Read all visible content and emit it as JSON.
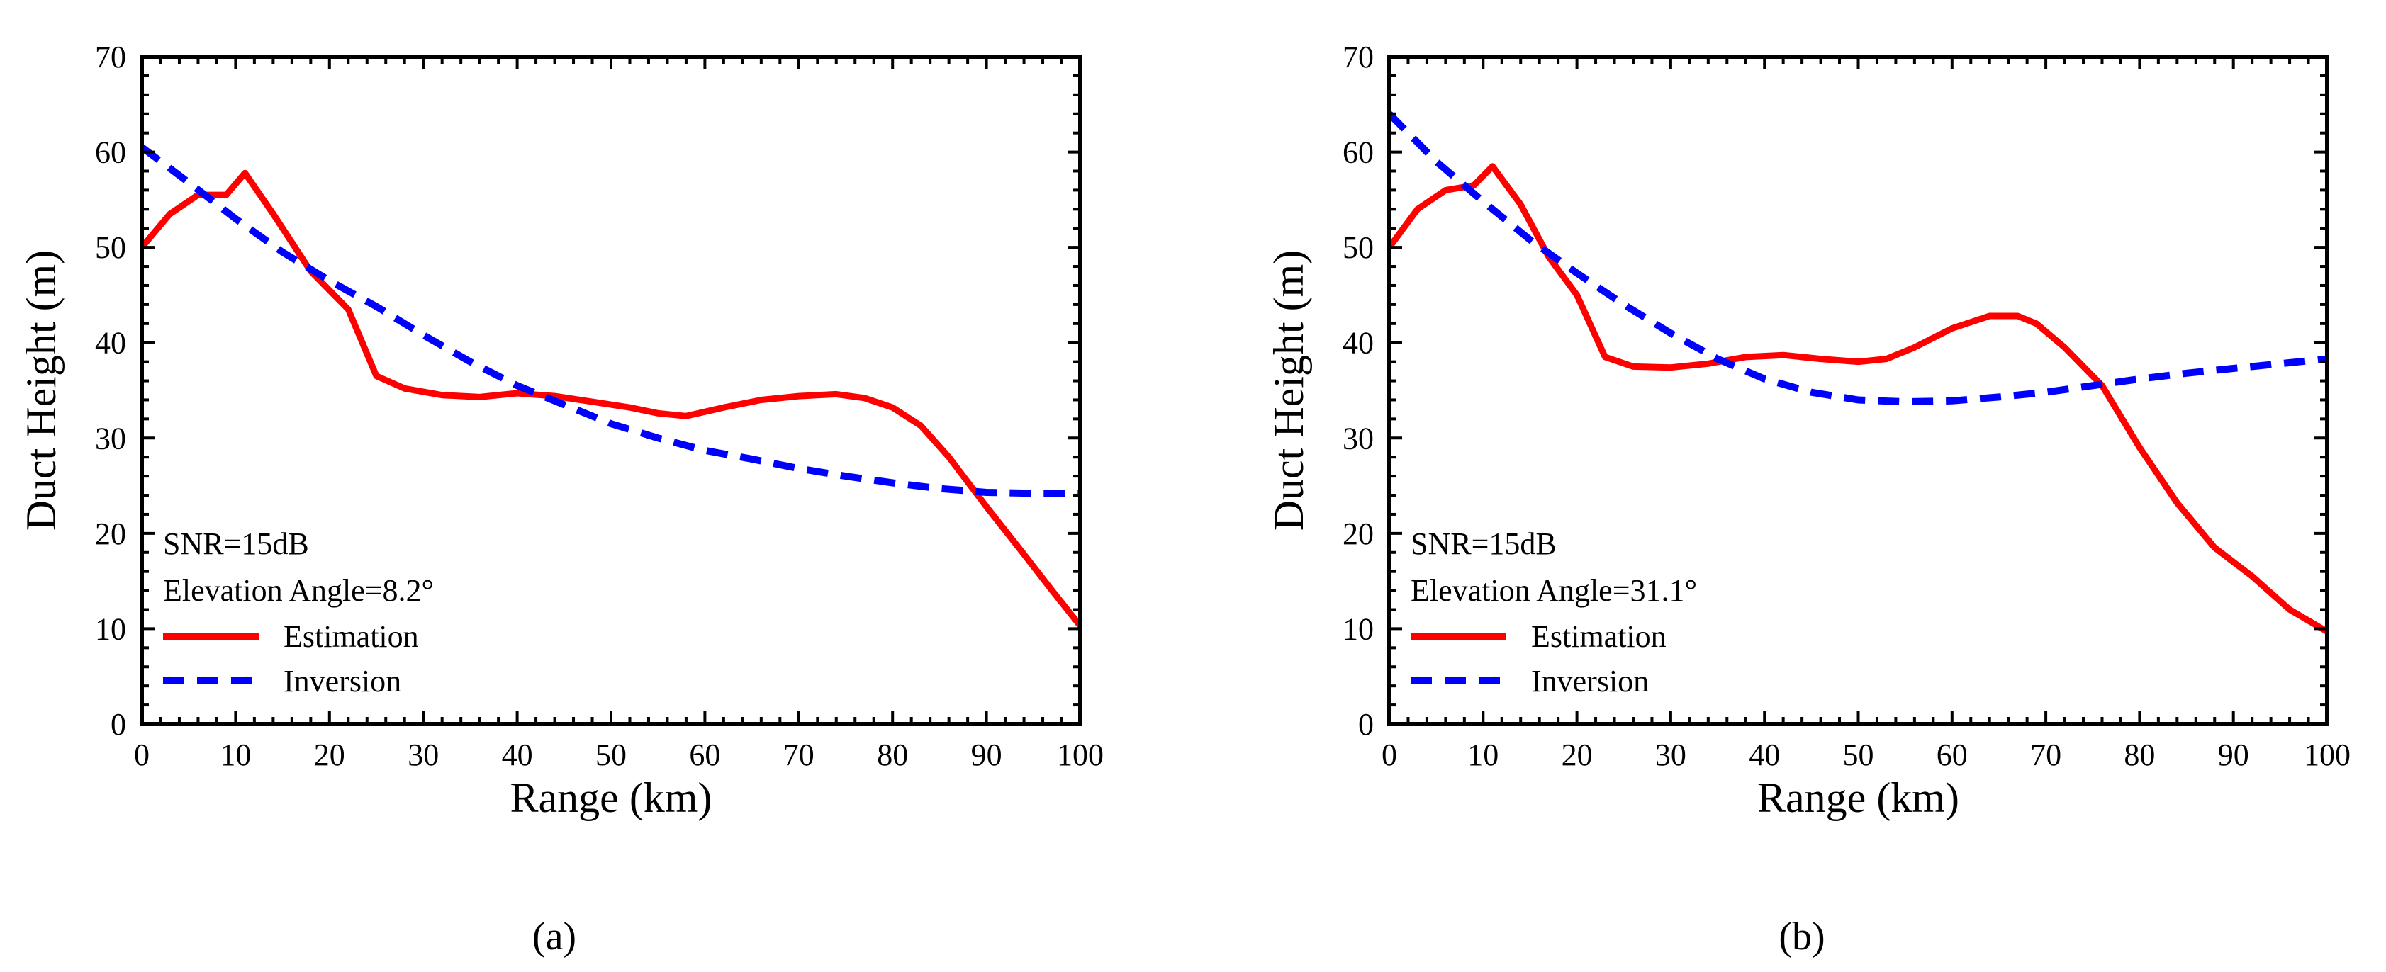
{
  "chart_data": [
    {
      "type": "line",
      "panel_label": "(a)",
      "xlabel": "Range (km)",
      "ylabel": "Duct Height (m)",
      "xlim": [
        0,
        100
      ],
      "ylim": [
        0,
        70
      ],
      "x_ticks": [
        0,
        10,
        20,
        30,
        40,
        50,
        60,
        70,
        80,
        90,
        100
      ],
      "y_ticks": [
        0,
        10,
        20,
        30,
        40,
        50,
        60,
        70
      ],
      "grid": false,
      "legend_position": "bottom-left",
      "annotations": [
        "SNR=15dB",
        "Elevation Angle=8.2°"
      ],
      "series": [
        {
          "name": "Estimation",
          "color": "#ff0000",
          "style": "solid",
          "x": [
            0,
            3,
            6,
            9,
            11,
            14,
            18,
            22,
            25,
            28,
            32,
            36,
            40,
            44,
            48,
            52,
            55,
            58,
            62,
            66,
            70,
            74,
            77,
            80,
            83,
            86,
            90,
            94,
            97,
            100
          ],
          "y": [
            50,
            53.5,
            55.5,
            55.5,
            57.8,
            53.5,
            47.5,
            43.5,
            36.5,
            35.2,
            34.5,
            34.3,
            34.7,
            34.4,
            33.8,
            33.2,
            32.6,
            32.3,
            33.2,
            34.0,
            34.4,
            34.6,
            34.2,
            33.2,
            31.3,
            28.0,
            22.8,
            17.8,
            14.0,
            10.3
          ]
        },
        {
          "name": "Inversion",
          "color": "#0000ff",
          "style": "dashed",
          "x": [
            0,
            5,
            10,
            15,
            20,
            25,
            30,
            35,
            40,
            45,
            50,
            55,
            60,
            65,
            70,
            75,
            80,
            85,
            90,
            95,
            100
          ],
          "y": [
            60.5,
            56.8,
            53.0,
            49.5,
            46.5,
            43.8,
            40.8,
            38.0,
            35.5,
            33.5,
            31.5,
            30.0,
            28.7,
            27.8,
            26.8,
            26.0,
            25.3,
            24.7,
            24.3,
            24.2,
            24.2
          ]
        }
      ]
    },
    {
      "type": "line",
      "panel_label": "(b)",
      "xlabel": "Range (km)",
      "ylabel": "Duct Height (m)",
      "xlim": [
        0,
        100
      ],
      "ylim": [
        0,
        70
      ],
      "x_ticks": [
        0,
        10,
        20,
        30,
        40,
        50,
        60,
        70,
        80,
        90,
        100
      ],
      "y_ticks": [
        0,
        10,
        20,
        30,
        40,
        50,
        60,
        70
      ],
      "grid": false,
      "legend_position": "bottom-left",
      "annotations": [
        "SNR=15dB",
        "Elevation Angle=31.1°"
      ],
      "series": [
        {
          "name": "Estimation",
          "color": "#ff0000",
          "style": "solid",
          "x": [
            0,
            3,
            6,
            9,
            11,
            14,
            17,
            20,
            23,
            26,
            30,
            34,
            38,
            42,
            46,
            50,
            53,
            56,
            60,
            64,
            67,
            69,
            72,
            76,
            80,
            84,
            88,
            92,
            96,
            100
          ],
          "y": [
            50,
            54,
            56,
            56.5,
            58.5,
            54.5,
            49,
            45,
            38.5,
            37.5,
            37.4,
            37.8,
            38.5,
            38.7,
            38.3,
            38.0,
            38.3,
            39.5,
            41.5,
            42.8,
            42.8,
            42.0,
            39.5,
            35.5,
            29.0,
            23.2,
            18.5,
            15.5,
            12.0,
            9.7
          ]
        },
        {
          "name": "Inversion",
          "color": "#0000ff",
          "style": "dashed",
          "x": [
            0,
            5,
            10,
            15,
            20,
            25,
            30,
            35,
            40,
            45,
            50,
            55,
            60,
            65,
            70,
            75,
            80,
            85,
            90,
            95,
            100
          ],
          "y": [
            64.0,
            59.0,
            54.8,
            50.8,
            47.3,
            44.0,
            41.0,
            38.3,
            36.2,
            34.8,
            34.0,
            33.8,
            33.9,
            34.3,
            34.8,
            35.5,
            36.2,
            36.8,
            37.3,
            37.8,
            38.3
          ]
        }
      ]
    }
  ]
}
